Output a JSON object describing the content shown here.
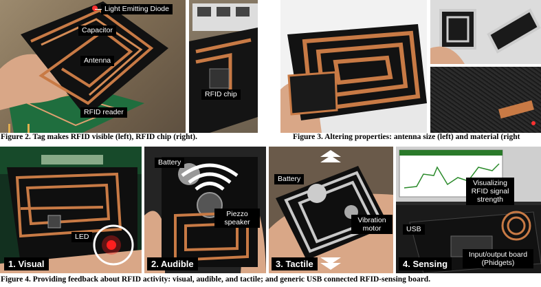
{
  "figure2": {
    "caption": "Figure 2. Tag makes RFID visible (left), RFID chip (right).",
    "labels": {
      "led": "Light Emitting Diode",
      "capacitor": "Capacitor",
      "antenna": "Antenna",
      "reader": "RFID reader",
      "chip": "RFID chip"
    }
  },
  "figure3": {
    "caption": "Figure 3. Altering properties: antenna size (left) and material (right"
  },
  "figure4": {
    "caption": "Figure 4. Providing feedback about RFID activity: visual, audible, and tactile; and generic USB connected RFID-sensing board.",
    "panels": [
      {
        "title": "1. Visual",
        "labels": [
          "LED"
        ]
      },
      {
        "title": "2. Audible",
        "labels": [
          "Battery",
          "Piezzo speaker"
        ]
      },
      {
        "title": "3. Tactile",
        "labels": [
          "Battery",
          "Vibration motor"
        ]
      },
      {
        "title": "4. Sensing",
        "labels": [
          "Visualizing RFID signal strength",
          "USB",
          "Input/output board (Phidgets)"
        ]
      }
    ]
  },
  "colors": {
    "copper": "#c87a45",
    "board": "#1a1a1a",
    "pcb_green": "#1f6e3e",
    "led_red": "#ff2020"
  }
}
